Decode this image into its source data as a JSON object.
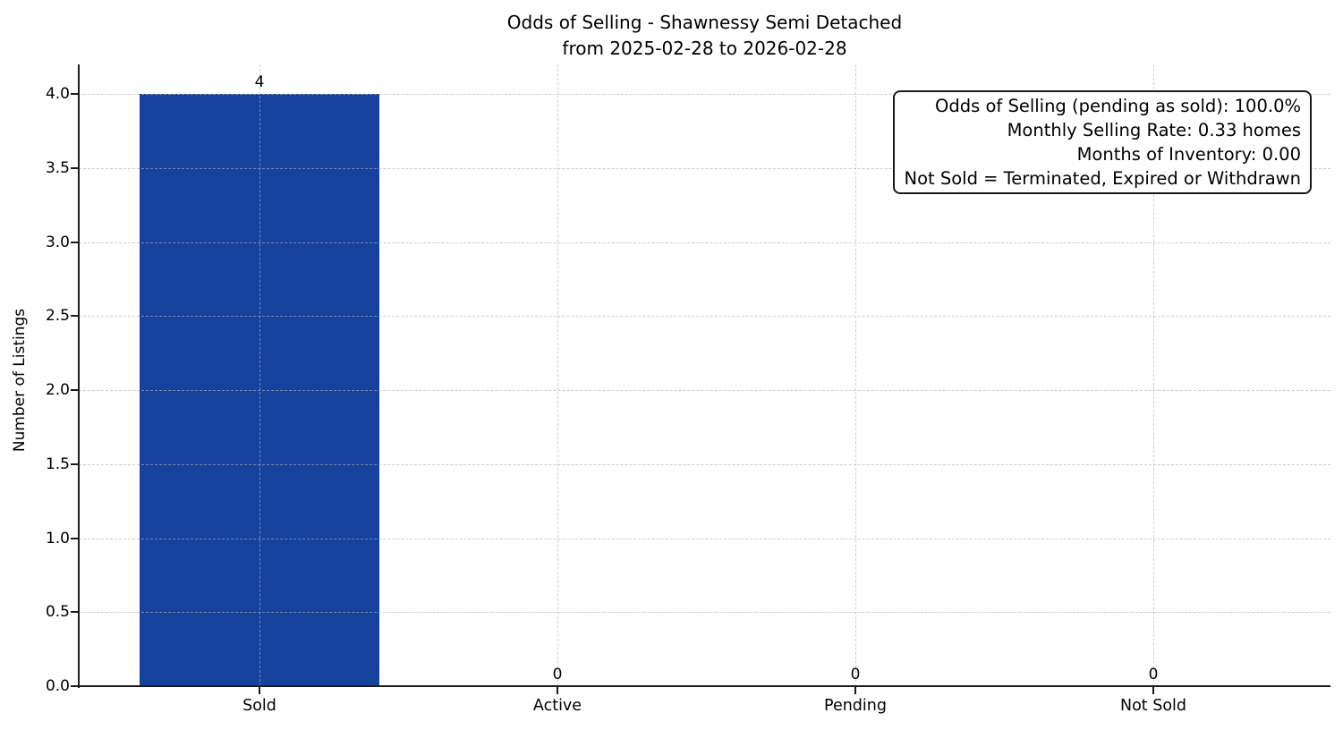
{
  "title": {
    "line1": "Odds of Selling - Shawnessy Semi Detached",
    "line2": "from 2025-02-28 to 2026-02-28"
  },
  "chart_data": {
    "type": "bar",
    "title": "Odds of Selling - Shawnessy Semi Detached\nfrom 2025-02-28 to 2026-02-28",
    "categories": [
      "Sold",
      "Active",
      "Pending",
      "Not Sold"
    ],
    "values": [
      4,
      0,
      0,
      0
    ],
    "bar_labels": [
      "4",
      "0",
      "0",
      "0"
    ],
    "xlabel": "",
    "ylabel": "Number of Listings",
    "ylim": [
      0,
      4.2
    ],
    "yticks": [
      0.0,
      0.5,
      1.0,
      1.5,
      2.0,
      2.5,
      3.0,
      3.5,
      4.0
    ],
    "ytick_labels": [
      "0.0",
      "0.5",
      "1.0",
      "1.5",
      "2.0",
      "2.5",
      "3.0",
      "3.5",
      "4.0"
    ],
    "grid": "dashed, both axes, light gray, drawn above bars",
    "legend_position": "none",
    "annotation": {
      "lines": [
        "Odds of Selling (pending as sold): 100.0%",
        "Monthly Selling Rate: 0.33 homes",
        "Months of Inventory: 0.00",
        "Not Sold = Terminated, Expired or Withdrawn"
      ]
    }
  },
  "colors": {
    "bar": "#16419c",
    "axis": "#1c1c1c",
    "grid": "#b2b2b2",
    "background": "#ffffff",
    "text": "#000000"
  }
}
